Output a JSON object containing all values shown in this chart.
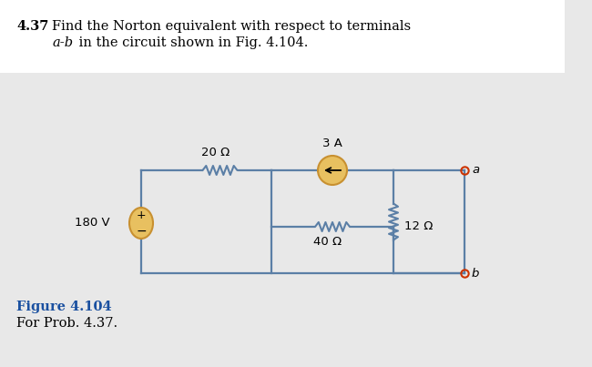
{
  "bg_color": "#e8e8e8",
  "wire_color": "#5b7fa6",
  "resistor_color": "#5b7fa6",
  "source_fill": "#e8c060",
  "source_edge": "#c89030",
  "terminal_color": "#cc3300",
  "text_color": "#000000",
  "fig_label_color": "#1a50a0",
  "title_bold": "4.37",
  "title_line1": "  Find the Norton equivalent with respect to terminals",
  "title_line2_italic": "a-b",
  "title_line2_rest": " in the circuit shown in Fig. 4.104.",
  "voltage_label": "180 V",
  "current_label": "3 A",
  "r1_label": "20 Ω",
  "r2_label": "40 Ω",
  "r3_label": "12 Ω",
  "term_a": "a",
  "term_b": "b",
  "fig_label": "Figure 4.104",
  "fig_sublabel": "For Prob. 4.37."
}
